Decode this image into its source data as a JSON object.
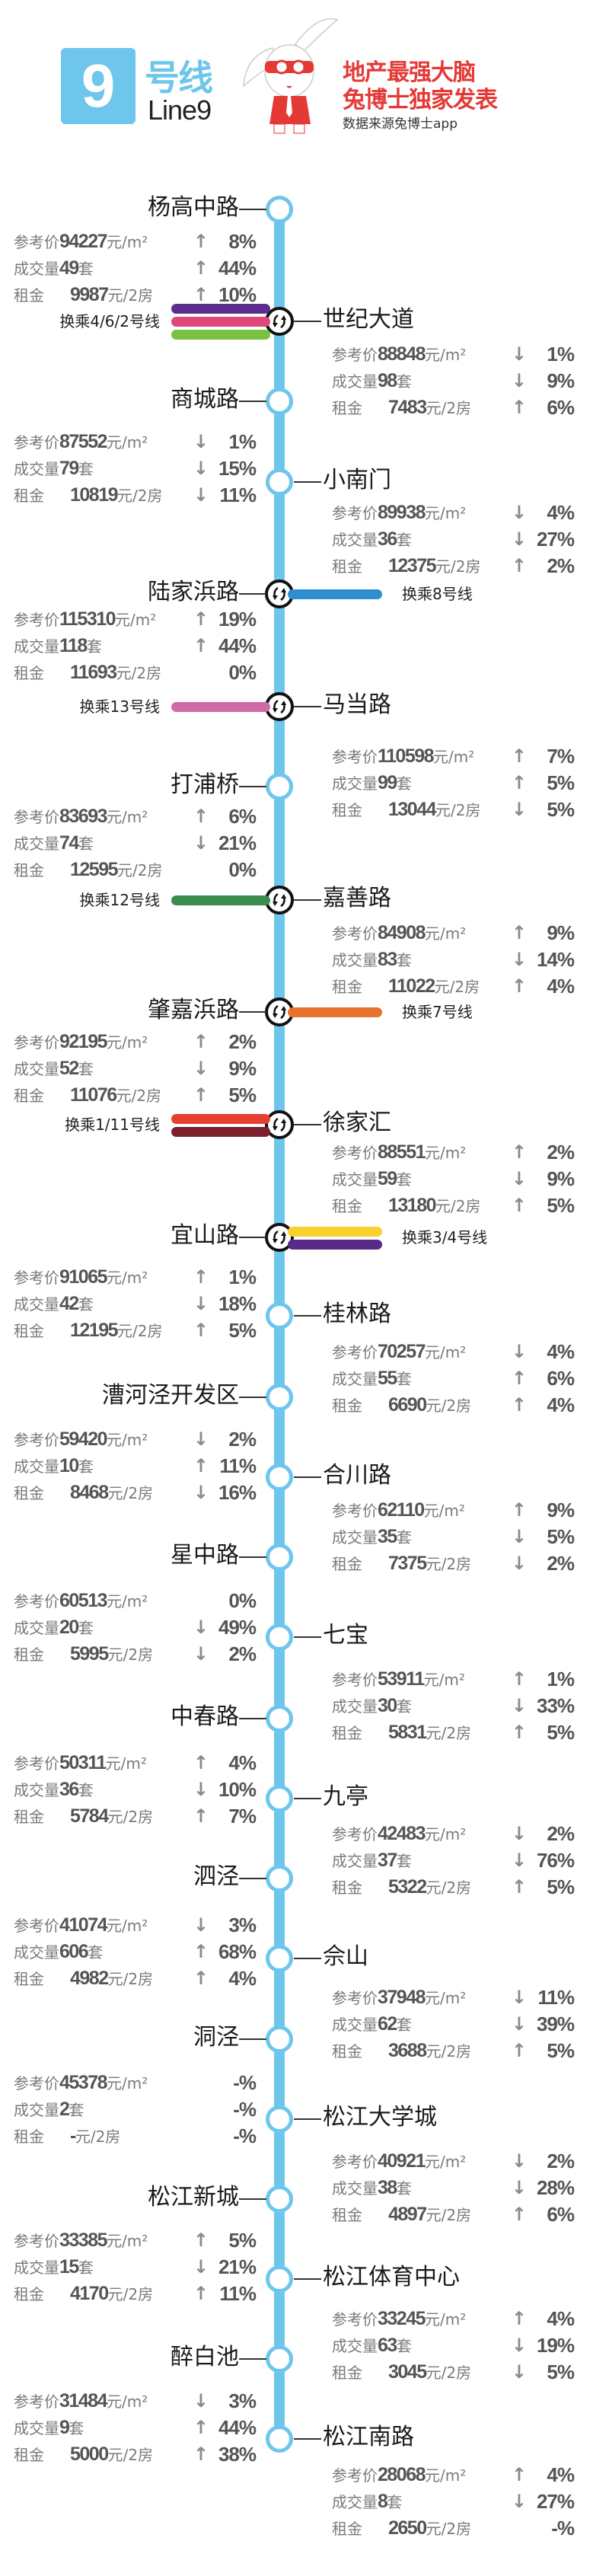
{
  "header": {
    "line_number": "9",
    "line_cn": "号线",
    "line_en": "Line9",
    "slogan_1": "地产最强大脑",
    "slogan_2": "兔博士独家发表",
    "source": "数据来源兔博士app"
  },
  "labels": {
    "price": "参考价",
    "volume": "成交量",
    "rent": "租金",
    "price_unit": "元/m²",
    "volume_unit": "套",
    "rent_unit": "元/2房"
  },
  "colors": {
    "line9": "#6ec6ec",
    "arrow": "#8a8a8a"
  },
  "stations": [
    {
      "name": "杨高中路",
      "side": "left",
      "stats": {
        "price": "94227",
        "price_dir": "up",
        "price_pct": "8%",
        "volume": "49",
        "volume_dir": "up",
        "volume_pct": "44%",
        "rent": "9987",
        "rent_dir": "up",
        "rent_pct": "10%"
      }
    },
    {
      "name": "世纪大道",
      "side": "right",
      "transfer": {
        "label": "换乘4/6/2号线",
        "colors": [
          "#5b2d8e",
          "#e0487a",
          "#7ac143"
        ]
      },
      "stats": {
        "price": "88848",
        "price_dir": "down",
        "price_pct": "1%",
        "volume": "98",
        "volume_dir": "down",
        "volume_pct": "9%",
        "rent": "7483",
        "rent_dir": "up",
        "rent_pct": "6%"
      }
    },
    {
      "name": "商城路",
      "side": "left",
      "stats": {
        "price": "87552",
        "price_dir": "down",
        "price_pct": "1%",
        "volume": "79",
        "volume_dir": "down",
        "volume_pct": "15%",
        "rent": "10819",
        "rent_dir": "down",
        "rent_pct": "11%"
      }
    },
    {
      "name": "小南门",
      "side": "right",
      "stats": {
        "price": "89938",
        "price_dir": "down",
        "price_pct": "4%",
        "volume": "36",
        "volume_dir": "down",
        "volume_pct": "27%",
        "rent": "12375",
        "rent_dir": "up",
        "rent_pct": "2%"
      }
    },
    {
      "name": "陆家浜路",
      "side": "left",
      "transfer": {
        "label": "换乘8号线",
        "colors": [
          "#2e8fd0"
        ]
      },
      "stats": {
        "price": "115310",
        "price_dir": "up",
        "price_pct": "19%",
        "volume": "118",
        "volume_dir": "up",
        "volume_pct": "44%",
        "rent": "11693",
        "rent_dir": "none",
        "rent_pct": "0%"
      }
    },
    {
      "name": "马当路",
      "side": "right",
      "transfer": {
        "label": "换乘13号线",
        "colors": [
          "#d06aa6"
        ]
      },
      "stats": {
        "price": "110598",
        "price_dir": "up",
        "price_pct": "7%",
        "volume": "99",
        "volume_dir": "up",
        "volume_pct": "5%",
        "rent": "13044",
        "rent_dir": "down",
        "rent_pct": "5%"
      }
    },
    {
      "name": "打浦桥",
      "side": "left",
      "stats": {
        "price": "83693",
        "price_dir": "up",
        "price_pct": "6%",
        "volume": "74",
        "volume_dir": "down",
        "volume_pct": "21%",
        "rent": "12595",
        "rent_dir": "none",
        "rent_pct": "0%"
      }
    },
    {
      "name": "嘉善路",
      "side": "right",
      "transfer": {
        "label": "换乘12号线",
        "colors": [
          "#3a8d4c"
        ]
      },
      "stats": {
        "price": "84908",
        "price_dir": "up",
        "price_pct": "9%",
        "volume": "83",
        "volume_dir": "down",
        "volume_pct": "14%",
        "rent": "11022",
        "rent_dir": "up",
        "rent_pct": "4%"
      }
    },
    {
      "name": "肇嘉浜路",
      "side": "left",
      "transfer": {
        "label": "换乘7号线",
        "colors": [
          "#e8732e"
        ]
      },
      "stats": {
        "price": "92195",
        "price_dir": "up",
        "price_pct": "2%",
        "volume": "52",
        "volume_dir": "down",
        "volume_pct": "9%",
        "rent": "11076",
        "rent_dir": "up",
        "rent_pct": "5%"
      }
    },
    {
      "name": "徐家汇",
      "side": "right",
      "transfer": {
        "label": "换乘1/11号线",
        "colors": [
          "#e63f31",
          "#7b1e2e"
        ]
      },
      "stats": {
        "price": "88551",
        "price_dir": "up",
        "price_pct": "2%",
        "volume": "59",
        "volume_dir": "down",
        "volume_pct": "9%",
        "rent": "13180",
        "rent_dir": "up",
        "rent_pct": "5%"
      }
    },
    {
      "name": "宜山路",
      "side": "left",
      "transfer": {
        "label": "换乘3/4号线",
        "colors": [
          "#f9d12d",
          "#5a2a87"
        ]
      },
      "stats": {
        "price": "91065",
        "price_dir": "up",
        "price_pct": "1%",
        "volume": "42",
        "volume_dir": "down",
        "volume_pct": "18%",
        "rent": "12195",
        "rent_dir": "up",
        "rent_pct": "5%"
      }
    },
    {
      "name": "桂林路",
      "side": "right",
      "stats": {
        "price": "70257",
        "price_dir": "down",
        "price_pct": "4%",
        "volume": "55",
        "volume_dir": "up",
        "volume_pct": "6%",
        "rent": "6690",
        "rent_dir": "up",
        "rent_pct": "4%"
      }
    },
    {
      "name": "漕河泾开发区",
      "side": "left",
      "stats": {
        "price": "59420",
        "price_dir": "down",
        "price_pct": "2%",
        "volume": "10",
        "volume_dir": "up",
        "volume_pct": "11%",
        "rent": "8468",
        "rent_dir": "down",
        "rent_pct": "16%"
      }
    },
    {
      "name": "合川路",
      "side": "right",
      "stats": {
        "price": "62110",
        "price_dir": "up",
        "price_pct": "9%",
        "volume": "35",
        "volume_dir": "down",
        "volume_pct": "5%",
        "rent": "7375",
        "rent_dir": "down",
        "rent_pct": "2%"
      }
    },
    {
      "name": "星中路",
      "side": "left",
      "stats": {
        "price": "60513",
        "price_dir": "none",
        "price_pct": "0%",
        "volume": "20",
        "volume_dir": "down",
        "volume_pct": "49%",
        "rent": "5995",
        "rent_dir": "down",
        "rent_pct": "2%"
      }
    },
    {
      "name": "七宝",
      "side": "right",
      "stats": {
        "price": "53911",
        "price_dir": "up",
        "price_pct": "1%",
        "volume": "30",
        "volume_dir": "down",
        "volume_pct": "33%",
        "rent": "5831",
        "rent_dir": "up",
        "rent_pct": "5%"
      }
    },
    {
      "name": "中春路",
      "side": "left",
      "stats": {
        "price": "50311",
        "price_dir": "up",
        "price_pct": "4%",
        "volume": "36",
        "volume_dir": "down",
        "volume_pct": "10%",
        "rent": "5784",
        "rent_dir": "up",
        "rent_pct": "7%"
      }
    },
    {
      "name": "九亭",
      "side": "right",
      "stats": {
        "price": "42483",
        "price_dir": "down",
        "price_pct": "2%",
        "volume": "37",
        "volume_dir": "down",
        "volume_pct": "76%",
        "rent": "5322",
        "rent_dir": "up",
        "rent_pct": "5%"
      }
    },
    {
      "name": "泗泾",
      "side": "left",
      "stats": {
        "price": "41074",
        "price_dir": "down",
        "price_pct": "3%",
        "volume": "606",
        "volume_dir": "up",
        "volume_pct": "68%",
        "rent": "4982",
        "rent_dir": "up",
        "rent_pct": "4%"
      }
    },
    {
      "name": "佘山",
      "side": "right",
      "stats": {
        "price": "37948",
        "price_dir": "down",
        "price_pct": "11%",
        "volume": "62",
        "volume_dir": "down",
        "volume_pct": "39%",
        "rent": "3688",
        "rent_dir": "up",
        "rent_pct": "5%"
      }
    },
    {
      "name": "洞泾",
      "side": "left",
      "stats": {
        "price": "45378",
        "price_dir": "none",
        "price_pct": "-%",
        "volume": "2",
        "volume_dir": "none",
        "volume_pct": "-%",
        "rent": "-",
        "rent_dir": "none",
        "rent_pct": "-%"
      }
    },
    {
      "name": "松江大学城",
      "side": "right",
      "stats": {
        "price": "40921",
        "price_dir": "down",
        "price_pct": "2%",
        "volume": "38",
        "volume_dir": "down",
        "volume_pct": "28%",
        "rent": "4897",
        "rent_dir": "up",
        "rent_pct": "6%"
      }
    },
    {
      "name": "松江新城",
      "side": "left",
      "stats": {
        "price": "33385",
        "price_dir": "up",
        "price_pct": "5%",
        "volume": "15",
        "volume_dir": "down",
        "volume_pct": "21%",
        "rent": "4170",
        "rent_dir": "up",
        "rent_pct": "11%"
      }
    },
    {
      "name": "松江体育中心",
      "side": "right",
      "stats": {
        "price": "33245",
        "price_dir": "up",
        "price_pct": "4%",
        "volume": "63",
        "volume_dir": "down",
        "volume_pct": "19%",
        "rent": "3045",
        "rent_dir": "down",
        "rent_pct": "5%"
      }
    },
    {
      "name": "醉白池",
      "side": "left",
      "stats": {
        "price": "31484",
        "price_dir": "down",
        "price_pct": "3%",
        "volume": "9",
        "volume_dir": "up",
        "volume_pct": "44%",
        "rent": "5000",
        "rent_dir": "up",
        "rent_pct": "38%"
      }
    },
    {
      "name": "松江南路",
      "side": "right",
      "stats": {
        "price": "28068",
        "price_dir": "up",
        "price_pct": "4%",
        "volume": "8",
        "volume_dir": "down",
        "volume_pct": "27%",
        "rent": "2650",
        "rent_dir": "none",
        "rent_pct": "-%"
      }
    }
  ]
}
